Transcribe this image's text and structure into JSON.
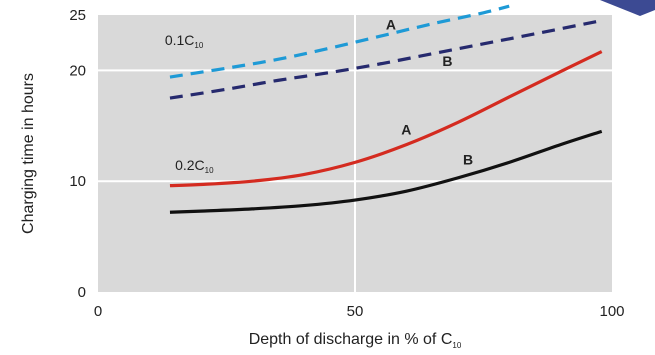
{
  "chart_data": {
    "type": "line",
    "xlabel": "Depth of discharge in % of C",
    "xlabel_sub": "10",
    "ylabel": "Charging time in hours",
    "xlim": [
      0,
      100
    ],
    "ylim": [
      0,
      25
    ],
    "x_ticks": [
      0,
      50,
      100
    ],
    "y_ticks": [
      0,
      10,
      20,
      25
    ],
    "grid": true,
    "colors": {
      "plot_bg": "#d9d9d9",
      "grid": "#ffffff",
      "series_0_1A": "#1e9ad6",
      "series_0_1B": "#262a6e",
      "series_0_2A": "#d42b20",
      "series_0_2B": "#111111",
      "corner_accent": "#3c4a93"
    },
    "groups": [
      {
        "prefix": "0.1C",
        "sub": "10",
        "label_pos": [
          13,
          22.3
        ]
      },
      {
        "prefix": "0.2C",
        "sub": "10",
        "label_pos": [
          15,
          11
        ]
      }
    ],
    "series": [
      {
        "name": "A",
        "group": 0,
        "style": "dashed",
        "color_key": "series_0_1A",
        "x": [
          14,
          25,
          35,
          45,
          55,
          65,
          75,
          80
        ],
        "y": [
          19.4,
          20.2,
          21.0,
          22.0,
          23.1,
          24.2,
          25.2,
          25.8
        ],
        "label_pos": [
          56,
          23.7
        ]
      },
      {
        "name": "B",
        "group": 0,
        "style": "dashed",
        "color_key": "series_0_1B",
        "x": [
          14,
          25,
          35,
          45,
          55,
          65,
          75,
          85,
          98
        ],
        "y": [
          17.5,
          18.3,
          19.1,
          19.8,
          20.6,
          21.5,
          22.4,
          23.3,
          24.5
        ],
        "label_pos": [
          67,
          20.4
        ]
      },
      {
        "name": "A",
        "group": 1,
        "style": "solid",
        "color_key": "series_0_2A",
        "x": [
          14,
          20,
          30,
          40,
          50,
          60,
          70,
          80,
          90,
          98
        ],
        "y": [
          9.6,
          9.7,
          10.0,
          10.6,
          11.7,
          13.3,
          15.3,
          17.6,
          19.9,
          21.7
        ],
        "label_pos": [
          59,
          14.2
        ]
      },
      {
        "name": "B",
        "group": 1,
        "style": "solid",
        "color_key": "series_0_2B",
        "x": [
          14,
          20,
          30,
          40,
          50,
          60,
          70,
          80,
          90,
          98
        ],
        "y": [
          7.2,
          7.3,
          7.5,
          7.8,
          8.3,
          9.1,
          10.3,
          11.7,
          13.3,
          14.5
        ],
        "label_pos": [
          71,
          11.5
        ]
      }
    ]
  }
}
